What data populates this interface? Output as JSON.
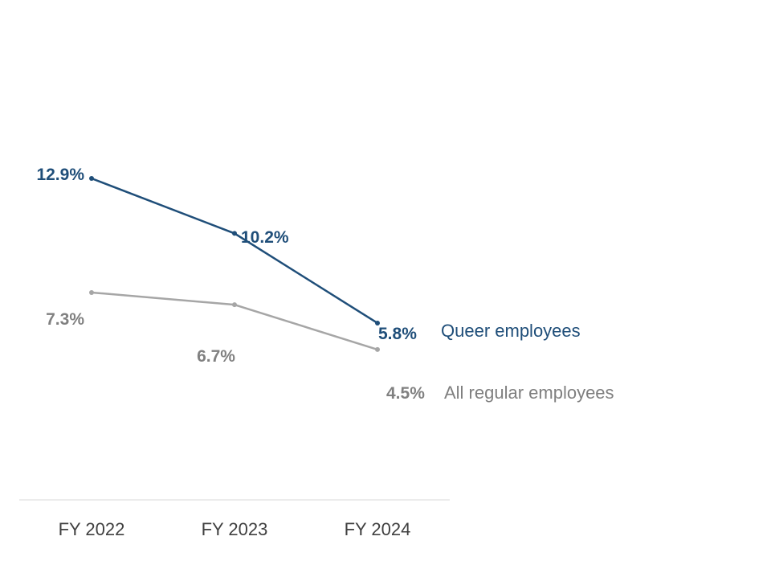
{
  "chart_data": {
    "type": "line",
    "title": "",
    "xlabel": "",
    "ylabel": "",
    "categories": [
      "FY 2022",
      "FY 2023",
      "FY 2024"
    ],
    "ylim": [
      0,
      14
    ],
    "series": [
      {
        "key": "queer",
        "name": "Queer employees",
        "values": [
          12.9,
          10.2,
          5.8
        ],
        "labels": [
          "12.9%",
          "10.2%",
          "5.8%"
        ],
        "color": "#1f4e79"
      },
      {
        "key": "all",
        "name": "All regular employees",
        "values": [
          7.3,
          6.7,
          4.5
        ],
        "labels": [
          "7.3%",
          "6.7%",
          "4.5%"
        ],
        "color": "#a6a6a6"
      }
    ],
    "label_color_all": "#808080",
    "legend_color_all": "#7f7f7f",
    "axis_color": "#d9d9d9",
    "grid": false,
    "legend": "inline-right"
  }
}
